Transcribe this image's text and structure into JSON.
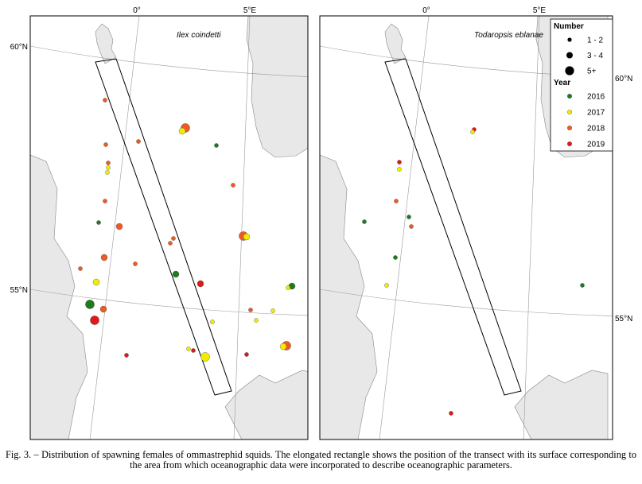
{
  "panels": [
    {
      "species": "Ilex coindetti",
      "meridians": [
        "0°",
        "5°E"
      ],
      "parallels": [
        "60°N",
        "55°N"
      ]
    },
    {
      "species": "Todaropsis eblanae",
      "meridians": [
        "0°",
        "5°E"
      ],
      "parallels": [
        "60°N",
        "55°N"
      ]
    }
  ],
  "legend": {
    "number_title": "Number",
    "numbers": [
      "1 - 2",
      "3 - 4",
      "5+"
    ],
    "year_title": "Year",
    "years": [
      {
        "label": "2016",
        "color": "#1e7b1e"
      },
      {
        "label": "2017",
        "color": "#f2ec00"
      },
      {
        "label": "2018",
        "color": "#ee5a24"
      },
      {
        "label": "2019",
        "color": "#e01818"
      }
    ]
  },
  "caption": "Fig. 3. – Distribution of spawning females of ommastrephid squids. The elongated rectangle shows the position of the transect with its surface corresponding to the area from which oceanographic data were incorporated to describe oceanographic parameters."
}
